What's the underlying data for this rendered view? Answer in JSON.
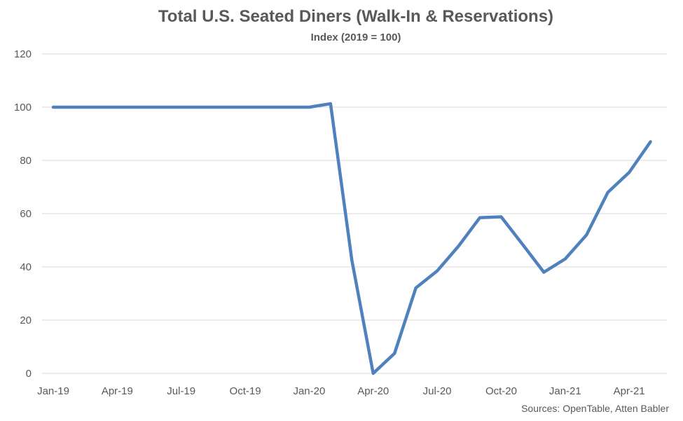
{
  "chart_data": {
    "type": "line",
    "title": "Total U.S. Seated Diners (Walk-In & Reservations)",
    "subtitle": "Index (2019 = 100)",
    "source": "Sources: OpenTable, Atten Babler",
    "ylim": [
      0,
      120
    ],
    "yticks": [
      "0",
      "20",
      "40",
      "60",
      "80",
      "100",
      "120"
    ],
    "xtick_labels": [
      {
        "label": "Jan-19",
        "index": 0
      },
      {
        "label": "Apr-19",
        "index": 3
      },
      {
        "label": "Jul-19",
        "index": 6
      },
      {
        "label": "Oct-19",
        "index": 9
      },
      {
        "label": "Jan-20",
        "index": 12
      },
      {
        "label": "Apr-20",
        "index": 15
      },
      {
        "label": "Jul-20",
        "index": 18
      },
      {
        "label": "Oct-20",
        "index": 21
      },
      {
        "label": "Jan-21",
        "index": 24
      },
      {
        "label": "Apr-21",
        "index": 27
      }
    ],
    "x": [
      "Jan-19",
      "Feb-19",
      "Mar-19",
      "Apr-19",
      "May-19",
      "Jun-19",
      "Jul-19",
      "Aug-19",
      "Sep-19",
      "Oct-19",
      "Nov-19",
      "Dec-19",
      "Jan-20",
      "Feb-20",
      "Mar-20",
      "Apr-20",
      "May-20",
      "Jun-20",
      "Jul-20",
      "Aug-20",
      "Sep-20",
      "Oct-20",
      "Nov-20",
      "Dec-20",
      "Jan-21",
      "Feb-21",
      "Mar-21",
      "Apr-21",
      "May-21"
    ],
    "series": [
      {
        "values": [
          100,
          100,
          100,
          100,
          100,
          100,
          100,
          100,
          100,
          100,
          100,
          100,
          100,
          101.3,
          42.5,
          0,
          7.5,
          32.1,
          38.5,
          47.8,
          58.5,
          58.8,
          48.5,
          38,
          43,
          52,
          68,
          75.5,
          87
        ]
      }
    ],
    "grid": true,
    "colors": {
      "line": "#4f81bd",
      "grid": "#d9d9d9",
      "text": "#595959"
    }
  }
}
